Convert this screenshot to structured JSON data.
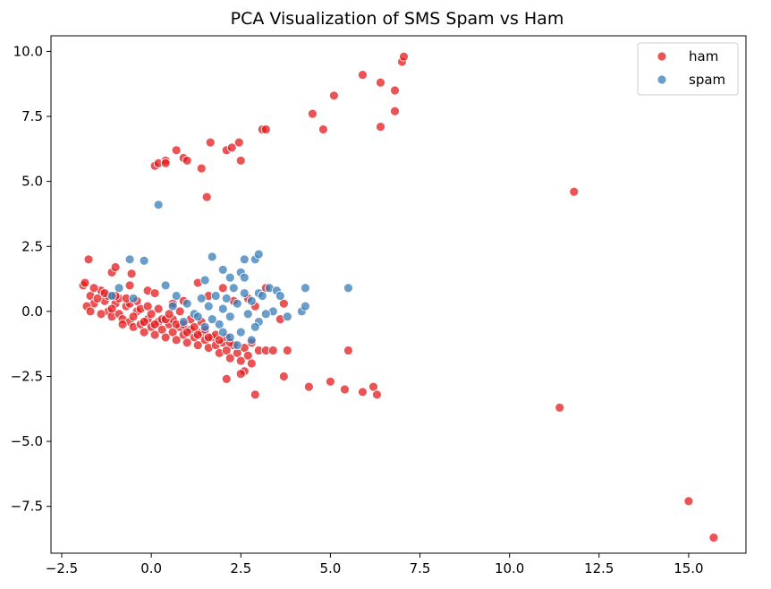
{
  "chart_data": {
    "type": "scatter",
    "title": "PCA Visualization of SMS Spam vs Ham",
    "xlabel": "",
    "ylabel": "",
    "xlim": [
      -2.8,
      16.6
    ],
    "ylim": [
      -9.3,
      10.6
    ],
    "xticks": [
      -2.5,
      0.0,
      2.5,
      5.0,
      7.5,
      10.0,
      12.5,
      15.0
    ],
    "xtick_labels": [
      "−2.5",
      "0.0",
      "2.5",
      "5.0",
      "7.5",
      "10.0",
      "12.5",
      "15.0"
    ],
    "yticks": [
      -7.5,
      -5.0,
      -2.5,
      0.0,
      2.5,
      5.0,
      7.5,
      10.0
    ],
    "ytick_labels": [
      "−7.5",
      "−5.0",
      "−2.5",
      "0.0",
      "2.5",
      "5.0",
      "7.5",
      "10.0"
    ],
    "grid": false,
    "legend_position": "top-right",
    "series": [
      {
        "name": "ham",
        "color": "#e41a1c",
        "points": [
          [
            -1.9,
            1.0
          ],
          [
            -1.7,
            0.6
          ],
          [
            -1.6,
            0.3
          ],
          [
            -1.4,
            0.8
          ],
          [
            -1.3,
            0.4
          ],
          [
            -1.2,
            0.0
          ],
          [
            -1.1,
            -0.2
          ],
          [
            -1.0,
            0.3
          ],
          [
            -0.9,
            -0.1
          ],
          [
            -0.8,
            -0.3
          ],
          [
            -0.7,
            0.2
          ],
          [
            -0.6,
            -0.4
          ],
          [
            -0.5,
            -0.6
          ],
          [
            -0.4,
            0.0
          ],
          [
            -0.3,
            -0.5
          ],
          [
            -0.2,
            -0.8
          ],
          [
            -0.1,
            -0.3
          ],
          [
            0.0,
            -0.6
          ],
          [
            0.1,
            -0.9
          ],
          [
            0.2,
            -0.4
          ],
          [
            0.3,
            -0.7
          ],
          [
            0.4,
            -1.0
          ],
          [
            0.5,
            -0.5
          ],
          [
            0.6,
            -0.8
          ],
          [
            0.7,
            -1.1
          ],
          [
            0.8,
            -0.6
          ],
          [
            0.9,
            -0.9
          ],
          [
            1.0,
            -1.2
          ],
          [
            1.1,
            -0.7
          ],
          [
            1.2,
            -1.0
          ],
          [
            1.3,
            -1.3
          ],
          [
            1.4,
            -0.8
          ],
          [
            1.5,
            -1.1
          ],
          [
            1.6,
            -1.4
          ],
          [
            1.7,
            -1.0
          ],
          [
            1.8,
            -1.3
          ],
          [
            1.9,
            -1.6
          ],
          [
            2.0,
            -1.2
          ],
          [
            2.1,
            -1.5
          ],
          [
            2.2,
            -1.8
          ],
          [
            2.3,
            -1.3
          ],
          [
            2.4,
            -1.6
          ],
          [
            2.5,
            -1.9
          ],
          [
            2.6,
            -1.4
          ],
          [
            2.7,
            -1.7
          ],
          [
            2.8,
            -1.2
          ],
          [
            3.0,
            -1.5
          ],
          [
            3.2,
            -1.5
          ],
          [
            3.4,
            -1.5
          ],
          [
            -1.8,
            0.2
          ],
          [
            -1.5,
            0.5
          ],
          [
            -1.2,
            0.6
          ],
          [
            -0.9,
            0.5
          ],
          [
            -0.6,
            0.3
          ],
          [
            -0.3,
            0.1
          ],
          [
            0.0,
            -0.1
          ],
          [
            0.3,
            -0.3
          ],
          [
            0.6,
            -0.3
          ],
          [
            0.9,
            -0.5
          ],
          [
            1.2,
            -0.6
          ],
          [
            1.5,
            -0.7
          ],
          [
            1.8,
            -0.9
          ],
          [
            2.1,
            -1.0
          ],
          [
            -1.7,
            0.0
          ],
          [
            -1.4,
            -0.1
          ],
          [
            -1.1,
            0.1
          ],
          [
            -0.8,
            -0.5
          ],
          [
            -0.5,
            -0.2
          ],
          [
            -0.2,
            -0.4
          ],
          [
            0.1,
            -0.5
          ],
          [
            0.4,
            -0.3
          ],
          [
            0.7,
            -0.5
          ],
          [
            1.0,
            -0.8
          ],
          [
            1.3,
            -0.9
          ],
          [
            1.6,
            -1.0
          ],
          [
            1.9,
            -1.1
          ],
          [
            2.2,
            -1.2
          ],
          [
            -1.6,
            0.9
          ],
          [
            -1.3,
            0.7
          ],
          [
            -1.0,
            0.6
          ],
          [
            -0.7,
            0.5
          ],
          [
            -0.4,
            0.4
          ],
          [
            -0.1,
            0.2
          ],
          [
            0.2,
            0.1
          ],
          [
            0.5,
            -0.1
          ],
          [
            0.8,
            0.0
          ],
          [
            1.1,
            -0.3
          ],
          [
            1.4,
            -0.4
          ],
          [
            -1.85,
            1.1
          ],
          [
            -1.75,
            2.0
          ],
          [
            -1.1,
            1.5
          ],
          [
            -1.0,
            1.7
          ],
          [
            -0.6,
            1.0
          ],
          [
            -0.55,
            1.45
          ],
          [
            -0.1,
            0.8
          ],
          [
            0.1,
            0.7
          ],
          [
            0.6,
            0.3
          ],
          [
            0.9,
            0.4
          ],
          [
            1.3,
            1.1
          ],
          [
            1.6,
            0.6
          ],
          [
            2.0,
            0.9
          ],
          [
            2.3,
            0.4
          ],
          [
            2.7,
            0.5
          ],
          [
            2.9,
            0.2
          ],
          [
            3.2,
            0.9
          ],
          [
            3.6,
            -0.3
          ],
          [
            3.7,
            0.3
          ],
          [
            3.8,
            -1.5
          ],
          [
            3.7,
            -2.5
          ],
          [
            2.1,
            -2.6
          ],
          [
            2.6,
            -2.3
          ],
          [
            2.9,
            -3.2
          ],
          [
            2.5,
            -2.4
          ],
          [
            2.8,
            -2.0
          ],
          [
            4.4,
            -2.9
          ],
          [
            5.0,
            -2.7
          ],
          [
            5.4,
            -3.0
          ],
          [
            5.5,
            -1.5
          ],
          [
            5.9,
            -3.1
          ],
          [
            6.2,
            -2.9
          ],
          [
            6.3,
            -3.2
          ],
          [
            0.1,
            5.6
          ],
          [
            0.2,
            5.7
          ],
          [
            0.4,
            5.8
          ],
          [
            0.4,
            5.7
          ],
          [
            0.7,
            6.2
          ],
          [
            0.9,
            5.9
          ],
          [
            1.0,
            5.8
          ],
          [
            1.4,
            5.5
          ],
          [
            1.55,
            4.4
          ],
          [
            1.65,
            6.5
          ],
          [
            2.1,
            6.2
          ],
          [
            2.25,
            6.3
          ],
          [
            2.45,
            6.5
          ],
          [
            2.5,
            5.8
          ],
          [
            3.1,
            7.0
          ],
          [
            3.2,
            7.0
          ],
          [
            4.5,
            7.6
          ],
          [
            4.8,
            7.0
          ],
          [
            5.1,
            8.3
          ],
          [
            5.9,
            9.1
          ],
          [
            6.4,
            8.8
          ],
          [
            6.8,
            8.5
          ],
          [
            6.8,
            7.7
          ],
          [
            6.4,
            7.1
          ],
          [
            7.0,
            9.6
          ],
          [
            7.05,
            9.8
          ],
          [
            11.8,
            4.6
          ],
          [
            11.4,
            -3.7
          ],
          [
            15.0,
            -7.3
          ],
          [
            15.7,
            -8.7
          ]
        ]
      },
      {
        "name": "spam",
        "color": "#377eb8",
        "points": [
          [
            0.2,
            4.1
          ],
          [
            -0.6,
            2.0
          ],
          [
            -0.2,
            1.95
          ],
          [
            1.7,
            2.1
          ],
          [
            2.0,
            1.6
          ],
          [
            2.5,
            1.5
          ],
          [
            2.6,
            2.0
          ],
          [
            2.9,
            2.0
          ],
          [
            3.0,
            2.2
          ],
          [
            2.6,
            1.3
          ],
          [
            2.2,
            1.3
          ],
          [
            1.5,
            1.2
          ],
          [
            0.4,
            1.0
          ],
          [
            -0.9,
            0.9
          ],
          [
            -1.1,
            0.6
          ],
          [
            -0.5,
            0.5
          ],
          [
            0.7,
            0.6
          ],
          [
            0.6,
            0.2
          ],
          [
            1.0,
            0.3
          ],
          [
            1.2,
            -0.1
          ],
          [
            1.4,
            0.5
          ],
          [
            1.6,
            0.2
          ],
          [
            1.8,
            0.6
          ],
          [
            2.0,
            0.1
          ],
          [
            2.1,
            0.5
          ],
          [
            2.2,
            -0.2
          ],
          [
            2.3,
            0.9
          ],
          [
            2.4,
            0.3
          ],
          [
            2.6,
            0.7
          ],
          [
            2.7,
            -0.1
          ],
          [
            2.8,
            0.4
          ],
          [
            3.0,
            -0.4
          ],
          [
            3.0,
            0.7
          ],
          [
            3.1,
            0.6
          ],
          [
            3.3,
            0.9
          ],
          [
            3.4,
            0.0
          ],
          [
            3.5,
            0.8
          ],
          [
            3.6,
            0.6
          ],
          [
            3.8,
            -0.2
          ],
          [
            4.2,
            0.0
          ],
          [
            4.3,
            0.9
          ],
          [
            4.3,
            0.2
          ],
          [
            5.5,
            0.9
          ],
          [
            1.9,
            -0.5
          ],
          [
            2.2,
            -1.0
          ],
          [
            2.5,
            -0.8
          ],
          [
            2.8,
            -1.1
          ],
          [
            1.7,
            -0.3
          ],
          [
            1.3,
            -0.2
          ],
          [
            0.9,
            -0.4
          ],
          [
            2.4,
            -1.3
          ],
          [
            2.0,
            -0.8
          ],
          [
            2.9,
            -0.6
          ],
          [
            3.2,
            -0.1
          ],
          [
            1.5,
            -0.6
          ]
        ]
      }
    ]
  }
}
